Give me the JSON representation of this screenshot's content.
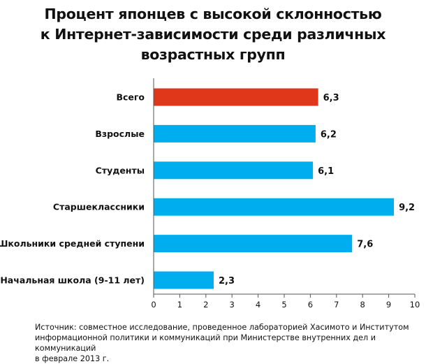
{
  "title_lines": [
    "Процент японцев с высокой склонностью",
    "к Интернет-зависимости среди различных",
    "возрастных групп"
  ],
  "source_lines": [
    "Источник: совместное исследование, проведенное лабораторией Хасимото и Институтом",
    "информационной политики и коммуникаций при Министерстве внутренних дел и коммуникаций",
    "в феврале 2013 г."
  ],
  "colors": {
    "highlight": "#e0361a",
    "bar": "#00aeef",
    "axis": "#555555",
    "text": "#111111"
  },
  "chart_data": {
    "type": "bar",
    "orientation": "horizontal",
    "title": "Процент японцев с высокой склонностью к Интернет-зависимости среди различных возрастных групп",
    "categories": [
      "Всего",
      "Взрослые",
      "Студенты",
      "Старшеклассники",
      "Школьники средней ступени",
      "Начальная школа (9-11 лет)"
    ],
    "values": [
      6.3,
      6.2,
      6.1,
      9.2,
      7.6,
      2.3
    ],
    "value_labels": [
      "6,3",
      "6,2",
      "6,1",
      "9,2",
      "7,6",
      "2,3"
    ],
    "highlight_index": 0,
    "xlim": [
      0,
      10
    ],
    "xticks": [
      0,
      1,
      2,
      3,
      4,
      5,
      6,
      7,
      8,
      9,
      10
    ],
    "xlabel": "",
    "ylabel": "",
    "grid": false,
    "legend": "none"
  }
}
